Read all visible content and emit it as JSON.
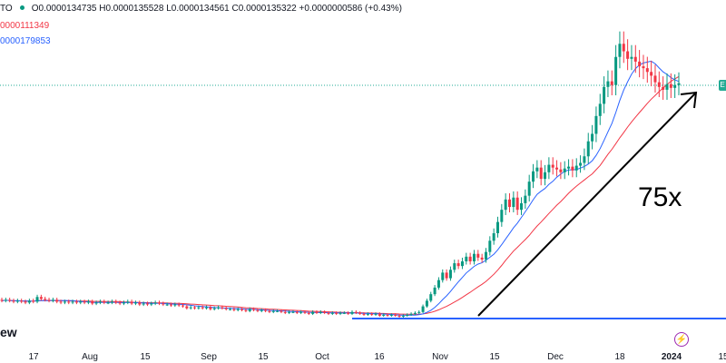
{
  "header": {
    "symbol_suffix": "TO",
    "ohlc": {
      "open": "O0.0000134735",
      "high": "H0.0000135528",
      "low": "L0.0000134561",
      "close": "C0.0000135322",
      "change": "+0.0000000586 (+0.43%)"
    },
    "ma_slow_label": "0000111349",
    "ma_fast_label": "0000179853",
    "brand_fragment": "ew"
  },
  "price_tag_text": "E",
  "x_axis": {
    "ticks": [
      "17",
      "Aug",
      "15",
      "Sep",
      "15",
      "Oct",
      "16",
      "Nov",
      "15",
      "Dec",
      "18",
      "2024",
      "15"
    ]
  },
  "annotation": {
    "text": "75x"
  },
  "colors": {
    "up": "#089981",
    "down": "#f23645",
    "ma_fast": "#2962ff",
    "ma_slow": "#f23645",
    "hline": "#2962ff",
    "arrow": "#000000",
    "price_line": "#22ab94"
  },
  "icons": {
    "alert": "lightning-icon"
  },
  "chart_data": {
    "type": "candlestick",
    "title": "",
    "y_scale": "linear",
    "ylim": [
      2e-07,
      2e-05
    ],
    "x_start": "2023-07-10",
    "x_end": "2024-01-22",
    "last_close": 1.35322e-05,
    "hline_value": 2e-07,
    "ma_fast_last": 1.79853e-05,
    "ma_slow_last": 1.11349e-05,
    "ohlc_daily_relative": {
      "note": "values expressed as multiples of the October low",
      "open": [
        1.9,
        1.8,
        1.9,
        1.8,
        1.7,
        1.8,
        1.7,
        1.6,
        1.8,
        1.7,
        2.2,
        2.0,
        1.9,
        1.8,
        1.9,
        1.7,
        1.6,
        1.7,
        1.6,
        1.7,
        1.6,
        1.7,
        1.6,
        1.7,
        1.5,
        1.6,
        1.7,
        1.6,
        1.6,
        1.7,
        1.6,
        1.5,
        1.6,
        1.7,
        1.5,
        1.6,
        1.4,
        1.5,
        1.4,
        1.5,
        1.6,
        1.5,
        1.4,
        1.4,
        1.3,
        1.4,
        1.3,
        1.2,
        1.0,
        1.1,
        1.0,
        1.1,
        1.0,
        1.1,
        0.9,
        1.0,
        1.1,
        1.0,
        0.9,
        0.9,
        0.8,
        0.9,
        0.8,
        0.7,
        0.9,
        0.8,
        0.7,
        0.8,
        0.7,
        0.6,
        0.7,
        0.7,
        0.6,
        0.5,
        0.6,
        0.6,
        0.5,
        0.6,
        0.5,
        0.4,
        0.6,
        0.5,
        0.6,
        0.5,
        0.4,
        0.5,
        0.4,
        0.5,
        0.5,
        0.4,
        0.6,
        0.5,
        0.4,
        0.3,
        0.4,
        0.3,
        0.4,
        0.2,
        0.3,
        0.2,
        0.3,
        0.2,
        0.1,
        0.2,
        0.3,
        0.4,
        0.5,
        0.6,
        1.2,
        1.8,
        2.5,
        3.2,
        4.0,
        4.8,
        4.2,
        5.1,
        5.8,
        5.5,
        6.0,
        6.5,
        6.0,
        6.8,
        6.4,
        6.2,
        7.0,
        8.2,
        9.0,
        10.2,
        11.5,
        12.6,
        11.8,
        12.8,
        11.5,
        12.2,
        13.0,
        14.5,
        15.6,
        16.0,
        14.8,
        15.5,
        16.3,
        16.0,
        15.8,
        15.5,
        15.9,
        16.1,
        15.7,
        16.2,
        16.5,
        17.2,
        18.8,
        19.6,
        21.5,
        22.8,
        24.6,
        25.2,
        24.8,
        27.8,
        29.2,
        28.4,
        27.6,
        27.8,
        27.3,
        26.8,
        26.6,
        26.2,
        25.8,
        25.1,
        24.6,
        24.3,
        24.9,
        24.5,
        24.8
      ],
      "close": [
        1.8,
        1.9,
        1.8,
        1.7,
        1.8,
        1.7,
        1.6,
        1.8,
        1.7,
        2.2,
        2.0,
        1.9,
        1.8,
        1.9,
        1.7,
        1.6,
        1.7,
        1.6,
        1.7,
        1.6,
        1.7,
        1.6,
        1.7,
        1.5,
        1.6,
        1.7,
        1.6,
        1.6,
        1.7,
        1.6,
        1.5,
        1.6,
        1.7,
        1.5,
        1.6,
        1.4,
        1.5,
        1.4,
        1.5,
        1.6,
        1.5,
        1.4,
        1.4,
        1.3,
        1.4,
        1.3,
        1.2,
        1.0,
        1.1,
        1.0,
        1.1,
        1.0,
        1.1,
        0.9,
        1.0,
        1.1,
        1.0,
        0.9,
        0.9,
        0.8,
        0.9,
        0.8,
        0.7,
        0.9,
        0.8,
        0.7,
        0.8,
        0.7,
        0.6,
        0.7,
        0.7,
        0.6,
        0.5,
        0.6,
        0.6,
        0.5,
        0.6,
        0.5,
        0.4,
        0.6,
        0.5,
        0.6,
        0.5,
        0.4,
        0.5,
        0.4,
        0.5,
        0.5,
        0.4,
        0.6,
        0.5,
        0.4,
        0.3,
        0.4,
        0.3,
        0.4,
        0.2,
        0.3,
        0.2,
        0.3,
        0.2,
        0.1,
        0.2,
        0.3,
        0.4,
        0.5,
        0.6,
        1.2,
        1.8,
        2.5,
        3.2,
        4.0,
        4.8,
        4.2,
        5.1,
        5.8,
        5.5,
        6.0,
        6.5,
        6.0,
        6.8,
        6.4,
        6.2,
        7.0,
        8.2,
        9.0,
        10.2,
        11.5,
        12.6,
        11.8,
        12.8,
        11.5,
        12.2,
        13.0,
        14.5,
        15.6,
        16.0,
        14.8,
        15.5,
        16.3,
        16.0,
        15.8,
        15.5,
        15.9,
        16.1,
        15.7,
        16.2,
        16.5,
        17.2,
        18.8,
        19.6,
        21.5,
        22.8,
        24.6,
        25.2,
        24.8,
        27.8,
        29.2,
        28.4,
        27.6,
        27.8,
        27.3,
        26.8,
        26.6,
        26.2,
        25.8,
        25.1,
        24.6,
        24.3,
        24.9,
        24.5,
        24.8,
        25.0
      ]
    }
  }
}
